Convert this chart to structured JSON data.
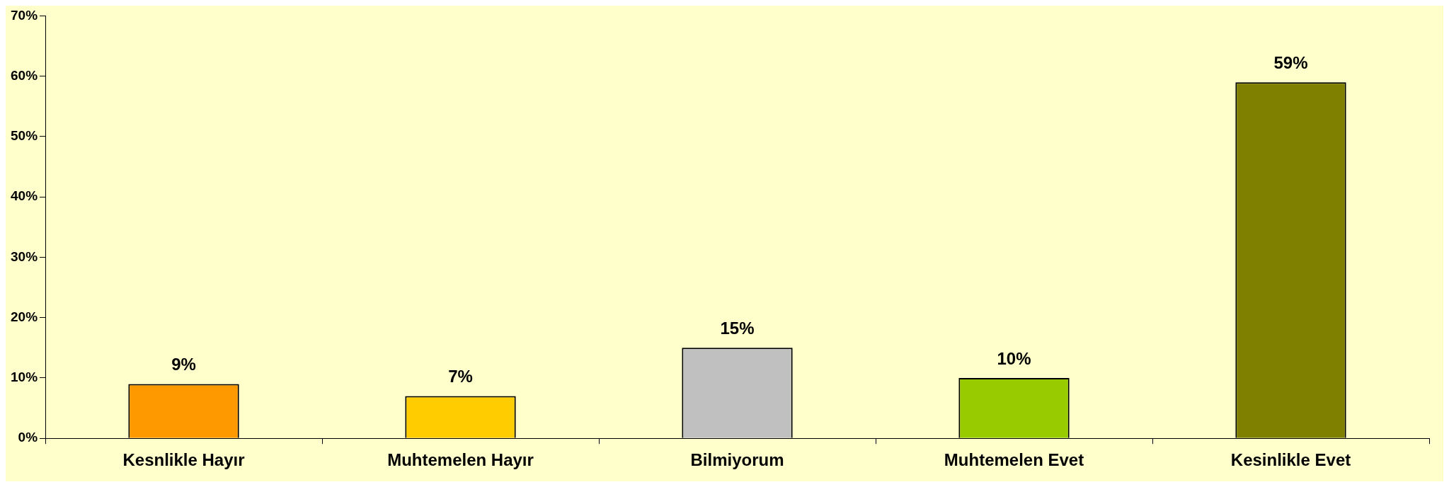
{
  "chart_data": {
    "type": "bar",
    "categories": [
      "Kesnlikle Hayır",
      "Muhtemelen Hayır",
      "Bilmiyorum",
      "Muhtemelen Evet",
      "Kesinlikle Evet"
    ],
    "values": [
      9,
      7,
      15,
      10,
      59
    ],
    "colors": [
      "#ff9900",
      "#ffcc00",
      "#c0c0c0",
      "#99cc00",
      "#808000"
    ],
    "value_labels": [
      "9%",
      "7%",
      "15%",
      "10%",
      "59%"
    ],
    "ylim": [
      0,
      70
    ],
    "yticks": [
      {
        "value": 0,
        "label": "0%"
      },
      {
        "value": 10,
        "label": "10%"
      },
      {
        "value": 20,
        "label": "20%"
      },
      {
        "value": 30,
        "label": "30%"
      },
      {
        "value": 40,
        "label": "40%"
      },
      {
        "value": 50,
        "label": "50%"
      },
      {
        "value": 60,
        "label": "60%"
      },
      {
        "value": 70,
        "label": "70%"
      }
    ],
    "grid": false,
    "legend": false
  }
}
